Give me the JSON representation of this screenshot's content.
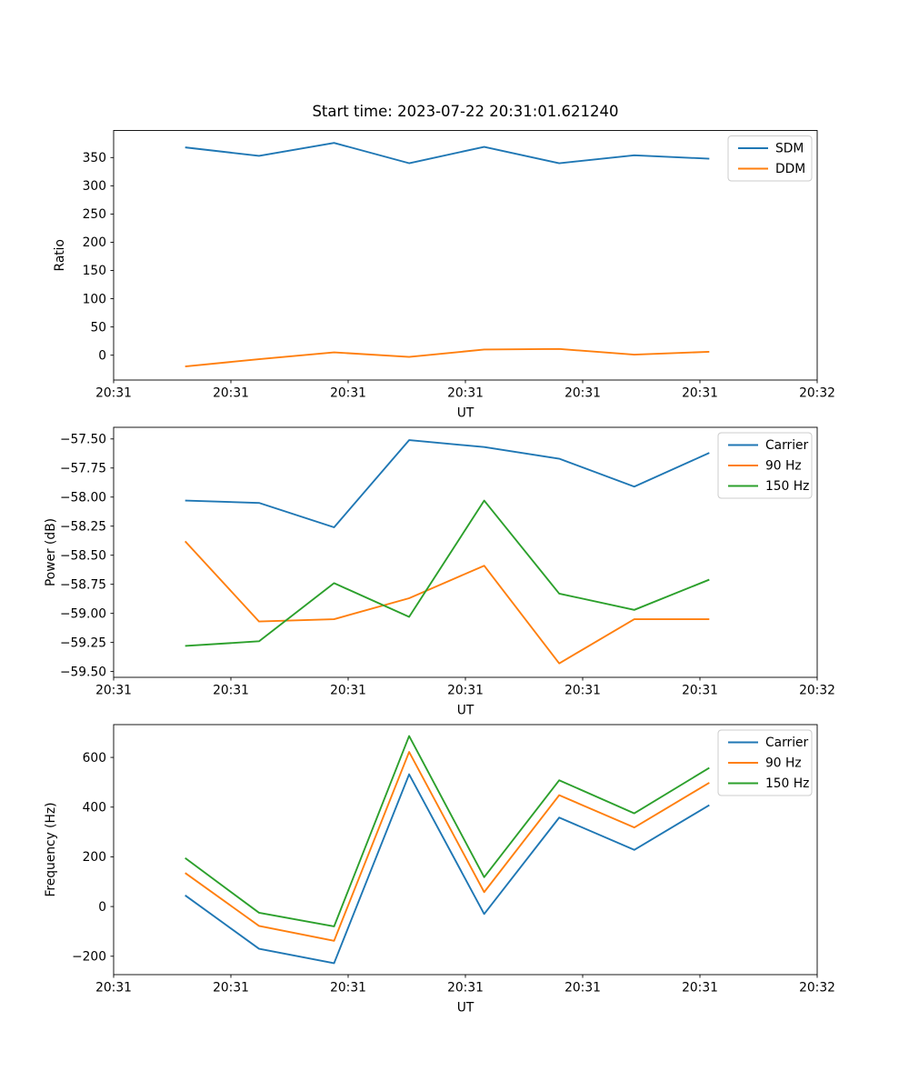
{
  "figure": {
    "title": "Start time: 2023-07-22 20:31:01.621240"
  },
  "colors": {
    "blue": "#1f77b4",
    "orange": "#ff7f0e",
    "green": "#2ca02c",
    "axis": "#000000",
    "legend_border": "#cccccc",
    "background": "#ffffff"
  },
  "x_axis": {
    "label": "UT",
    "xlim": [
      0,
      60
    ],
    "tick_values": [
      0,
      10,
      20,
      30,
      40,
      50,
      60
    ],
    "tick_labels": [
      "20:31",
      "20:31",
      "20:31",
      "20:31",
      "20:31",
      "20:31",
      "20:32"
    ]
  },
  "chart_data": [
    {
      "type": "line",
      "name": "ratio",
      "title": "Start time: 2023-07-22 20:31:01.621240",
      "xlabel": "UT",
      "ylabel": "Ratio",
      "ylim": [
        -44,
        398
      ],
      "ytick_values": [
        0,
        50,
        100,
        150,
        200,
        250,
        300,
        350
      ],
      "ytick_labels": [
        "0",
        "50",
        "100",
        "150",
        "200",
        "250",
        "300",
        "350"
      ],
      "x": [
        6.1,
        12.4,
        18.8,
        25.2,
        31.6,
        38.0,
        44.4,
        50.8
      ],
      "legend_position": "upper right",
      "grid": false,
      "series": [
        {
          "name": "SDM",
          "color": "blue",
          "values": [
            368,
            353,
            376,
            340,
            369,
            340,
            354,
            348
          ]
        },
        {
          "name": "DDM",
          "color": "orange",
          "values": [
            -20,
            -7,
            5,
            -3,
            10,
            11,
            1,
            6
          ]
        }
      ]
    },
    {
      "type": "line",
      "name": "power",
      "xlabel": "UT",
      "ylabel": "Power (dB)",
      "ylim": [
        -59.55,
        -57.4
      ],
      "ytick_values": [
        -57.5,
        -57.75,
        -58.0,
        -58.25,
        -58.5,
        -58.75,
        -59.0,
        -59.25,
        -59.5
      ],
      "ytick_labels": [
        "−57.50",
        "−57.75",
        "−58.00",
        "−58.25",
        "−58.50",
        "−58.75",
        "−59.00",
        "−59.25",
        "−59.50"
      ],
      "x": [
        6.1,
        12.4,
        18.8,
        25.2,
        31.6,
        38.0,
        44.4,
        50.8
      ],
      "legend_position": "upper right",
      "grid": false,
      "series": [
        {
          "name": "Carrier",
          "color": "blue",
          "values": [
            -58.03,
            -58.05,
            -58.26,
            -57.51,
            -57.57,
            -57.67,
            -57.91,
            -57.62
          ]
        },
        {
          "name": "90 Hz",
          "color": "orange",
          "values": [
            -58.38,
            -59.07,
            -59.05,
            -58.87,
            -58.59,
            -59.43,
            -59.05,
            -59.05
          ]
        },
        {
          "name": "150 Hz",
          "color": "green",
          "values": [
            -59.28,
            -59.24,
            -58.74,
            -59.03,
            -58.03,
            -58.83,
            -58.97,
            -58.71
          ]
        }
      ]
    },
    {
      "type": "line",
      "name": "frequency",
      "xlabel": "UT",
      "ylabel": "Frequency (Hz)",
      "ylim": [
        -274,
        732
      ],
      "ytick_values": [
        -200,
        0,
        200,
        400,
        600
      ],
      "ytick_labels": [
        "−200",
        "0",
        "200",
        "400",
        "600"
      ],
      "x": [
        6.1,
        12.4,
        18.8,
        25.2,
        31.6,
        38.0,
        44.4,
        50.8
      ],
      "legend_position": "upper right",
      "grid": false,
      "series": [
        {
          "name": "Carrier",
          "color": "blue",
          "values": [
            45,
            -170,
            -228,
            532,
            -30,
            358,
            228,
            408
          ]
        },
        {
          "name": "90 Hz",
          "color": "orange",
          "values": [
            135,
            -78,
            -138,
            622,
            58,
            448,
            318,
            498
          ]
        },
        {
          "name": "150 Hz",
          "color": "green",
          "values": [
            195,
            -25,
            -80,
            686,
            118,
            508,
            375,
            558
          ]
        }
      ]
    }
  ]
}
